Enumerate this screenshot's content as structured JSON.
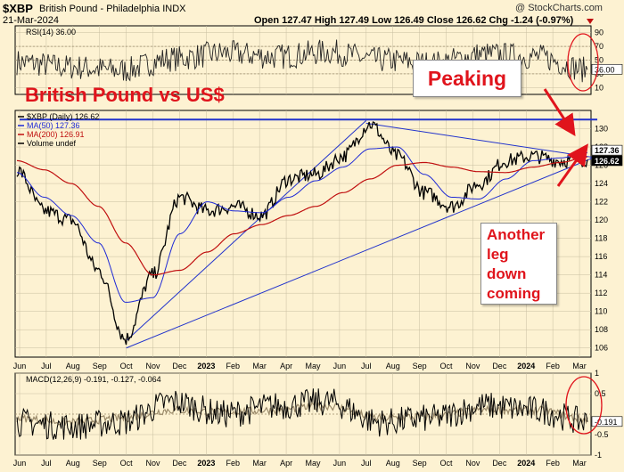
{
  "header": {
    "symbol": "$XBP",
    "name": "British Pound - Philadelphia INDX",
    "date": "21-Mar-2024",
    "watermark": "@ StockCharts.com",
    "ohlc": "Open 127.47  High 127.49  Low 126.49  Close 126.62  Chg -1.24 (-0.97%)"
  },
  "annotations": {
    "title": "British Pound vs US$",
    "peaking": "Peaking",
    "another_leg": [
      "Another",
      "leg",
      "down",
      "coming"
    ]
  },
  "colors": {
    "background": "#fdf2d2",
    "price": "#000000",
    "ma50": "#1f2ad6",
    "ma200": "#c01010",
    "trendline": "#2233cc",
    "annotation": "#e0141c",
    "signal": "#9a8a6a"
  },
  "chart_data": [
    {
      "type": "line",
      "panel": "RSI",
      "legend": "RSI(14) 36.00",
      "ylim": [
        0,
        100
      ],
      "yticks": [
        10,
        30,
        50,
        70,
        90
      ],
      "hlines": [
        30,
        50,
        70
      ],
      "last_value_label": "36.00",
      "x": [
        "Jun 2022",
        "Aug 2022",
        "Oct 2022",
        "Dec 2022",
        "Feb 2023",
        "Apr 2023",
        "Jun 2023",
        "Aug 2023",
        "Oct 2023",
        "Dec 2023",
        "Feb 2024",
        "Mar 2024"
      ],
      "values": [
        47,
        40,
        35,
        52,
        60,
        55,
        62,
        50,
        45,
        58,
        55,
        36
      ]
    },
    {
      "type": "line",
      "panel": "Price",
      "legend": [
        "$XBP (Daily) 126.62",
        "MA(50) 127.36",
        "MA(200) 126.91",
        "Volume undef"
      ],
      "ylim": [
        105,
        132
      ],
      "yticks": [
        106,
        108,
        110,
        112,
        114,
        116,
        118,
        120,
        122,
        124,
        126,
        128,
        130
      ],
      "x": [
        "Jun 2022",
        "Jul 2022",
        "Aug 2022",
        "Sep 2022",
        "Oct 2022",
        "Nov 2022",
        "Dec 2022",
        "2023",
        "Feb 2023",
        "Mar 2023",
        "Apr 2023",
        "May 2023",
        "Jun 2023",
        "Jul 2023",
        "Aug 2023",
        "Sep 2023",
        "Oct 2023",
        "Nov 2023",
        "Dec 2023",
        "2024",
        "Feb 2024",
        "Mar 2024"
      ],
      "series": [
        {
          "name": "$XBP (Daily)",
          "values": [
            125.5,
            121.0,
            120.0,
            114.5,
            107.0,
            114.0,
            122.5,
            121.0,
            121.5,
            120.5,
            124.5,
            125.0,
            127.0,
            130.5,
            127.0,
            123.0,
            121.5,
            124.0,
            126.5,
            127.0,
            126.5,
            126.62
          ]
        },
        {
          "name": "MA(50)",
          "values": [
            125.2,
            122.5,
            120.5,
            117.5,
            111.0,
            111.5,
            118.5,
            122.0,
            121.0,
            120.8,
            122.5,
            124.3,
            125.8,
            127.8,
            128.0,
            125.0,
            122.5,
            122.3,
            124.5,
            126.5,
            126.8,
            127.36
          ]
        },
        {
          "name": "MA(200)",
          "values": [
            126.5,
            125.5,
            124.0,
            121.5,
            117.5,
            114.0,
            114.5,
            116.5,
            118.5,
            119.5,
            120.5,
            121.5,
            123.0,
            124.5,
            126.0,
            126.3,
            125.8,
            125.3,
            125.2,
            125.8,
            126.3,
            126.91
          ]
        }
      ],
      "price_labels": [
        "127.36",
        "126.62"
      ],
      "trendlines": [
        {
          "from": [
            "Oct 2022",
            106.8
          ],
          "to": [
            "Jul 2023",
            130.9
          ]
        },
        {
          "from": [
            "Oct 2022",
            106.0
          ],
          "to": [
            "Mar 2024",
            127.0
          ]
        },
        {
          "from": [
            "Jul 2023",
            130.6
          ],
          "to": [
            "Mar 2024",
            126.8
          ]
        },
        {
          "from": [
            "Jun 2022",
            131.0
          ],
          "to": [
            "Mar 2024",
            131.0
          ]
        }
      ]
    },
    {
      "type": "line",
      "panel": "MACD",
      "legend": "MACD(12,26,9) -0.191, -0.127, -0.064",
      "ylim": [
        -1.0,
        1.0
      ],
      "yticks": [
        -1.0,
        -0.5,
        0.5,
        1.0
      ],
      "hlines": [
        0
      ],
      "last_value_label": "-0.191",
      "x": [
        "Jun 2022",
        "Aug 2022",
        "Oct 2022",
        "Dec 2022",
        "Feb 2023",
        "Apr 2023",
        "Jun 2023",
        "Aug 2023",
        "Oct 2023",
        "Dec 2023",
        "Feb 2024",
        "Mar 2024"
      ],
      "series": [
        {
          "name": "MACD",
          "values": [
            -0.2,
            -0.3,
            -0.2,
            0.3,
            0.0,
            0.2,
            0.3,
            -0.2,
            -0.1,
            0.2,
            0.1,
            -0.191
          ]
        },
        {
          "name": "Signal",
          "values": [
            -0.1,
            -0.2,
            -0.1,
            0.1,
            0.05,
            0.1,
            0.2,
            -0.1,
            -0.05,
            0.1,
            0.1,
            -0.127
          ]
        }
      ]
    }
  ],
  "time_axis": {
    "labels": [
      "Jun",
      "Jul",
      "Aug",
      "Sep",
      "Oct",
      "Nov",
      "Dec",
      "2023",
      "Feb",
      "Mar",
      "Apr",
      "May",
      "Jun",
      "Jul",
      "Aug",
      "Sep",
      "Oct",
      "Nov",
      "Dec",
      "2024",
      "Feb",
      "Mar"
    ]
  }
}
